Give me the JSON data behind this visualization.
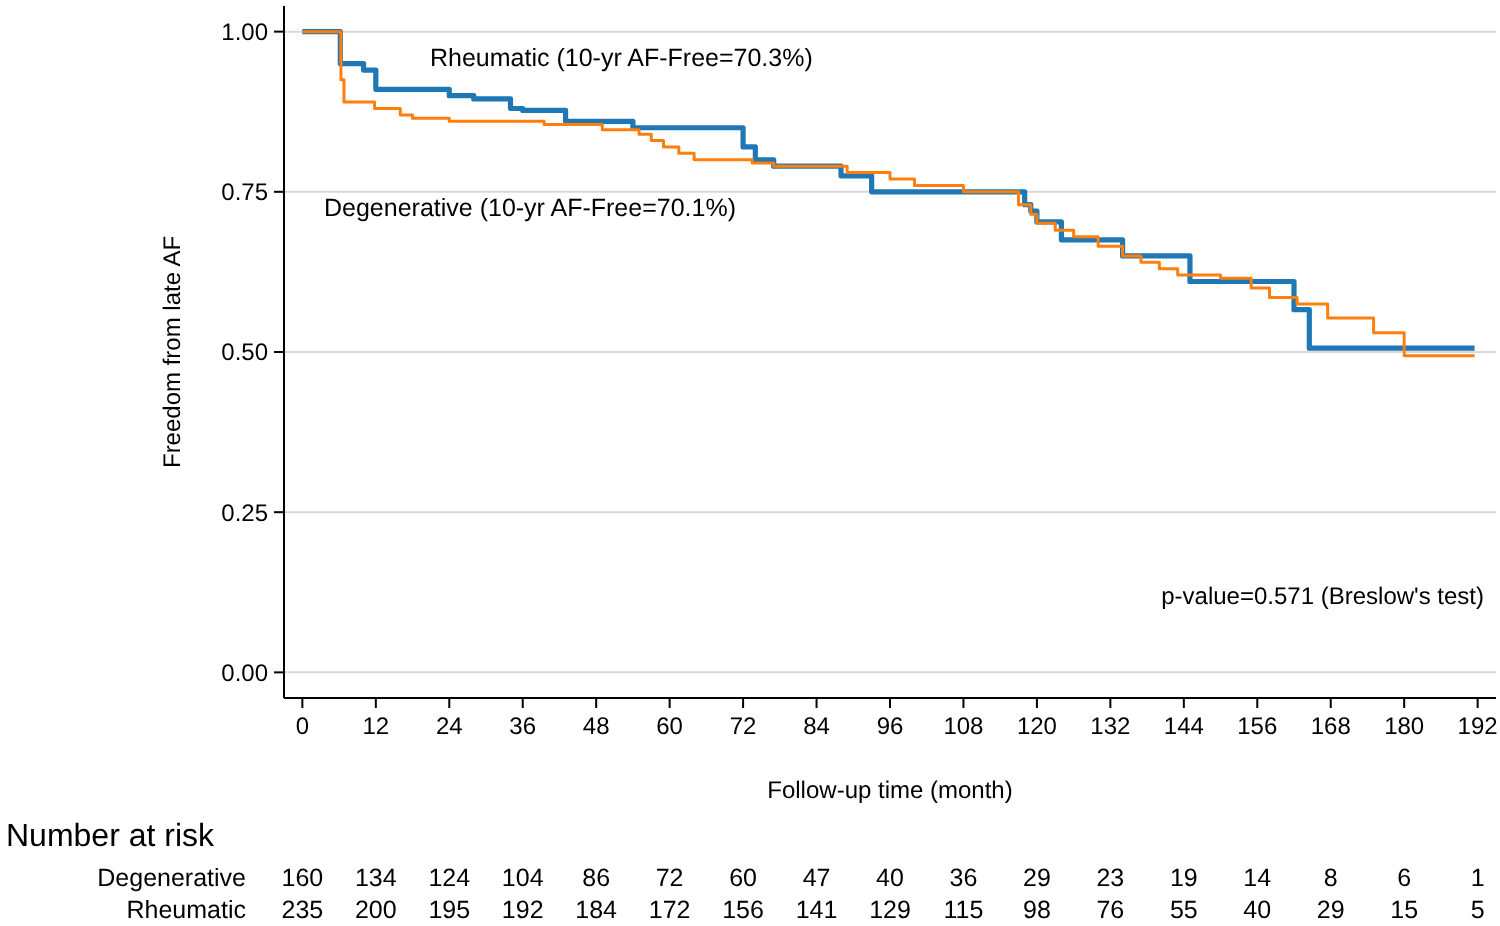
{
  "chart_data": {
    "type": "step",
    "xlabel": "Follow-up time (month)",
    "ylabel": "Freedom from late AF",
    "xlim": [
      -3,
      195
    ],
    "ylim": [
      -0.04,
      1.04
    ],
    "xticks": [
      0,
      12,
      24,
      36,
      48,
      60,
      72,
      84,
      96,
      108,
      120,
      132,
      144,
      156,
      168,
      180,
      192
    ],
    "yticks": [
      {
        "value": 0,
        "label": "0.00"
      },
      {
        "value": 0.25,
        "label": "0.25"
      },
      {
        "value": 0.5,
        "label": "0.50"
      },
      {
        "value": 0.75,
        "label": "0.75"
      },
      {
        "value": 1,
        "label": "1.00"
      }
    ],
    "grid": "y",
    "marker": "none",
    "line_style": "solid",
    "series": [
      {
        "name": "Rheumatic (10-yr AF-Free=70.3%)",
        "color": "#1f77b4",
        "x": [
          0,
          6.2,
          10,
          12,
          24,
          28,
          34,
          36,
          43,
          54,
          72,
          74,
          77,
          88,
          93,
          118,
          119,
          120,
          124,
          134,
          145,
          162,
          164.5,
          191.5
        ],
        "values": [
          1,
          0.95,
          0.94,
          0.91,
          0.9,
          0.895,
          0.88,
          0.877,
          0.86,
          0.85,
          0.82,
          0.8,
          0.79,
          0.775,
          0.75,
          0.73,
          0.72,
          0.703,
          0.675,
          0.65,
          0.61,
          0.566,
          0.506,
          0.506
        ]
      },
      {
        "name": "Degenerative (10-yr AF-Free=70.1%)",
        "color": "#ff7f0e",
        "x": [
          0,
          6.3,
          6.8,
          11.8,
          16,
          18,
          24,
          39.5,
          49,
          55,
          57,
          59,
          61.5,
          64,
          73.5,
          77,
          89,
          96,
          100,
          108,
          117,
          119,
          120,
          123,
          126,
          130,
          134,
          137,
          140,
          143,
          150,
          155,
          158,
          162.5,
          167.5,
          175,
          180,
          191.5
        ],
        "values": [
          1,
          0.925,
          0.89,
          0.88,
          0.87,
          0.865,
          0.86,
          0.855,
          0.847,
          0.84,
          0.83,
          0.82,
          0.81,
          0.8,
          0.795,
          0.79,
          0.78,
          0.77,
          0.76,
          0.75,
          0.73,
          0.715,
          0.701,
          0.69,
          0.68,
          0.665,
          0.65,
          0.64,
          0.63,
          0.62,
          0.615,
          0.6,
          0.585,
          0.575,
          0.553,
          0.53,
          0.494,
          0.494
        ]
      }
    ],
    "annotations": [
      "p-value=0.571 (Breslow's test)",
      "Number at risk",
      "Degenerative",
      "160",
      "134",
      "124",
      "104",
      "86",
      "72",
      "60",
      "47",
      "40",
      "36",
      "29",
      "23",
      "19",
      "14",
      "8",
      "6",
      "1",
      "Rheumatic",
      "235",
      "200",
      "195",
      "192",
      "184",
      "172",
      "156",
      "141",
      "129",
      "115",
      "98",
      "76",
      "55",
      "40",
      "29",
      "15",
      "5"
    ]
  }
}
